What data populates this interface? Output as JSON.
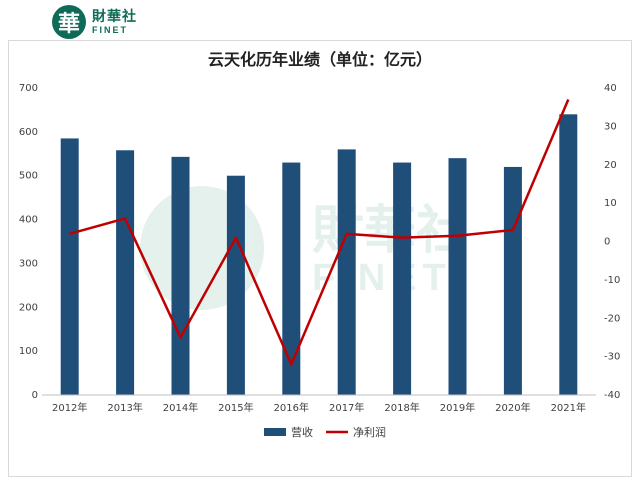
{
  "logo": {
    "glyph": "華",
    "name_cn": "財華社",
    "name_en": "FINET"
  },
  "watermark": {
    "name_cn": "財華社",
    "name_en": "FINET"
  },
  "chart_data": {
    "type": "bar+line",
    "title": "云天化历年业绩（单位：亿元）",
    "categories": [
      "2012年",
      "2013年",
      "2014年",
      "2015年",
      "2016年",
      "2017年",
      "2018年",
      "2019年",
      "2020年",
      "2021年"
    ],
    "series": [
      {
        "name": "营收",
        "type": "bar",
        "axis": "left",
        "color": "#1f4e79",
        "values": [
          585,
          558,
          543,
          500,
          530,
          560,
          530,
          540,
          520,
          640
        ]
      },
      {
        "name": "净利润",
        "type": "line",
        "axis": "right",
        "color": "#c00000",
        "values": [
          2,
          6,
          -25,
          1,
          -32,
          2,
          1,
          1.5,
          3,
          37
        ]
      }
    ],
    "left_axis": {
      "min": 0,
      "max": 700,
      "ticks": [
        0,
        100,
        200,
        300,
        400,
        500,
        600,
        700
      ]
    },
    "right_axis": {
      "min": -40,
      "max": 40,
      "ticks": [
        -40,
        -30,
        -20,
        -10,
        0,
        10,
        20,
        30,
        40
      ]
    },
    "grid": false,
    "legend_position": "bottom"
  }
}
